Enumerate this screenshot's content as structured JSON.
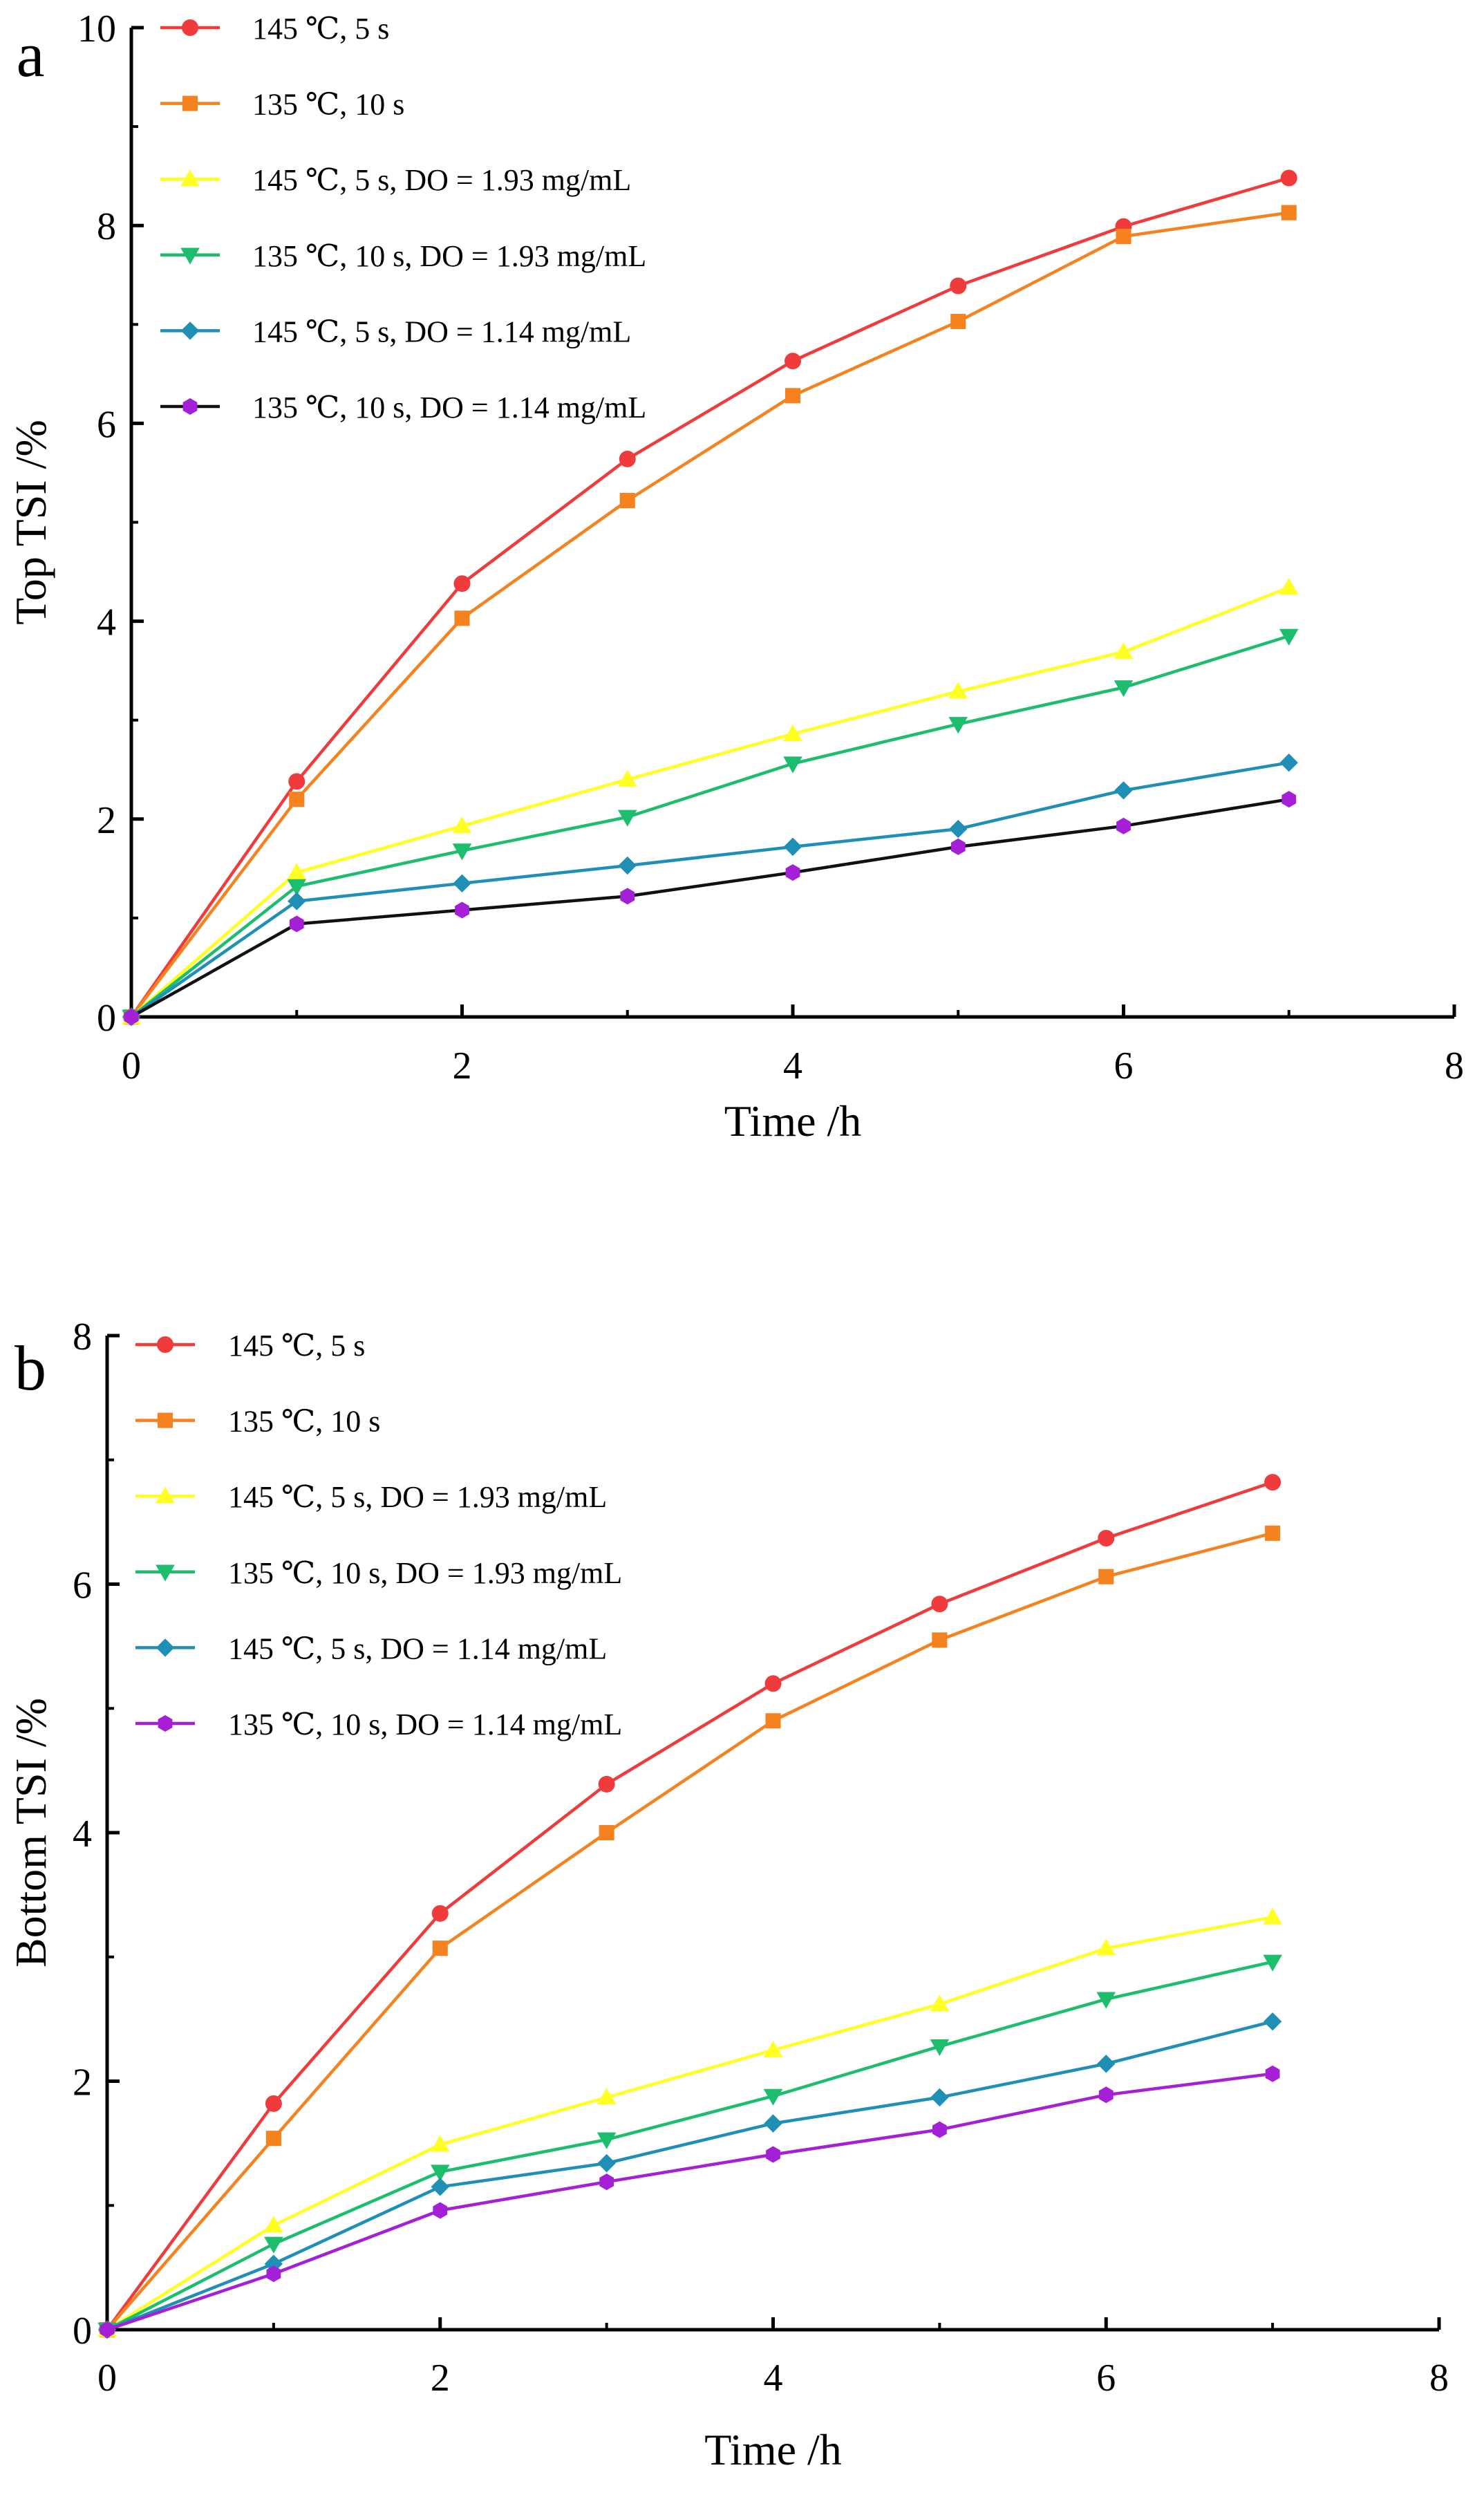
{
  "figure": {
    "panels": [
      "a",
      "b"
    ]
  },
  "chart_data": [
    {
      "type": "line",
      "panel_label": "a",
      "title": "",
      "xlabel": "Time /h",
      "ylabel": "Top TSI /%",
      "xlim": [
        0,
        8
      ],
      "ylim": [
        0,
        10
      ],
      "xticks": [
        0,
        2,
        4,
        6,
        8
      ],
      "yticks": [
        0,
        2,
        4,
        6,
        8,
        10
      ],
      "grid": false,
      "legend_position": "top-left",
      "x": [
        0,
        1,
        2,
        3,
        4,
        5,
        6,
        7
      ],
      "series": [
        {
          "name": "145 ℃,  5 s",
          "marker": "circle",
          "color": "#ef3b3b",
          "line_color": "#ef3b3b",
          "values": [
            0,
            2.38,
            4.38,
            5.64,
            6.63,
            7.39,
            7.99,
            8.48
          ]
        },
        {
          "name": "135 ℃,  10 s",
          "marker": "square",
          "color": "#f5821f",
          "line_color": "#f5821f",
          "values": [
            0,
            2.2,
            4.03,
            5.22,
            6.28,
            7.03,
            7.89,
            8.13
          ]
        },
        {
          "name": "145 ℃,  5 s,  DO = 1.93 mg/mL",
          "marker": "triangle-up",
          "color": "#ffff22",
          "line_color": "#ffff22",
          "values": [
            0,
            1.46,
            1.93,
            2.4,
            2.86,
            3.29,
            3.69,
            4.34
          ]
        },
        {
          "name": "135 ℃,  10 s,  DO = 1.93 mg/mL",
          "marker": "triangle-down",
          "color": "#1dbd6e",
          "line_color": "#1dbd6e",
          "values": [
            0,
            1.32,
            1.68,
            2.02,
            2.56,
            2.96,
            3.33,
            3.85
          ]
        },
        {
          "name": "145 ℃,  5 s,  DO = 1.14 mg/mL",
          "marker": "diamond",
          "color": "#1f8fb5",
          "line_color": "#1f8fb5",
          "values": [
            0,
            1.17,
            1.35,
            1.53,
            1.72,
            1.9,
            2.29,
            2.57
          ]
        },
        {
          "name": "135 ℃,  10 s,  DO = 1.14 mg/mL",
          "marker": "hexagon",
          "color": "#a41fd6",
          "line_color": "#111111",
          "values": [
            0,
            0.94,
            1.08,
            1.22,
            1.46,
            1.72,
            1.93,
            2.2
          ]
        }
      ]
    },
    {
      "type": "line",
      "panel_label": "b",
      "title": "",
      "xlabel": "Time /h",
      "ylabel": "Bottom TSI /%",
      "xlim": [
        0,
        8
      ],
      "ylim": [
        0,
        8
      ],
      "xticks": [
        0,
        2,
        4,
        6,
        8
      ],
      "yticks": [
        0,
        2,
        4,
        6,
        8
      ],
      "grid": false,
      "legend_position": "top-left",
      "x": [
        0,
        1,
        2,
        3,
        4,
        5,
        6,
        7
      ],
      "series": [
        {
          "name": "145 ℃,  5 s",
          "marker": "circle",
          "color": "#ef3b3b",
          "line_color": "#ef3b3b",
          "values": [
            0,
            1.82,
            3.35,
            4.39,
            5.2,
            5.84,
            6.37,
            6.82
          ]
        },
        {
          "name": "135 ℃,  10 s",
          "marker": "square",
          "color": "#f5821f",
          "line_color": "#f5821f",
          "values": [
            0,
            1.54,
            3.07,
            4.0,
            4.9,
            5.55,
            6.06,
            6.41
          ]
        },
        {
          "name": "145 ℃,  5 s,  DO = 1.93 mg/mL",
          "marker": "triangle-up",
          "color": "#ffff22",
          "line_color": "#ffff22",
          "values": [
            0,
            0.84,
            1.49,
            1.87,
            2.25,
            2.62,
            3.07,
            3.32
          ]
        },
        {
          "name": "135 ℃,  10 s,  DO = 1.93 mg/mL",
          "marker": "triangle-down",
          "color": "#1dbd6e",
          "line_color": "#1dbd6e",
          "values": [
            0,
            0.69,
            1.27,
            1.53,
            1.88,
            2.28,
            2.66,
            2.96
          ]
        },
        {
          "name": "145 ℃,  5 s,  DO = 1.14 mg/mL",
          "marker": "diamond",
          "color": "#1f8fb5",
          "line_color": "#1f8fb5",
          "values": [
            0,
            0.53,
            1.15,
            1.34,
            1.66,
            1.87,
            2.14,
            2.48
          ]
        },
        {
          "name": "135 ℃,  10 s,  DO = 1.14 mg/mL",
          "marker": "hexagon",
          "color": "#a41fd6",
          "line_color": "#a41fd6",
          "values": [
            0,
            0.45,
            0.96,
            1.19,
            1.41,
            1.61,
            1.89,
            2.06
          ]
        }
      ]
    }
  ]
}
